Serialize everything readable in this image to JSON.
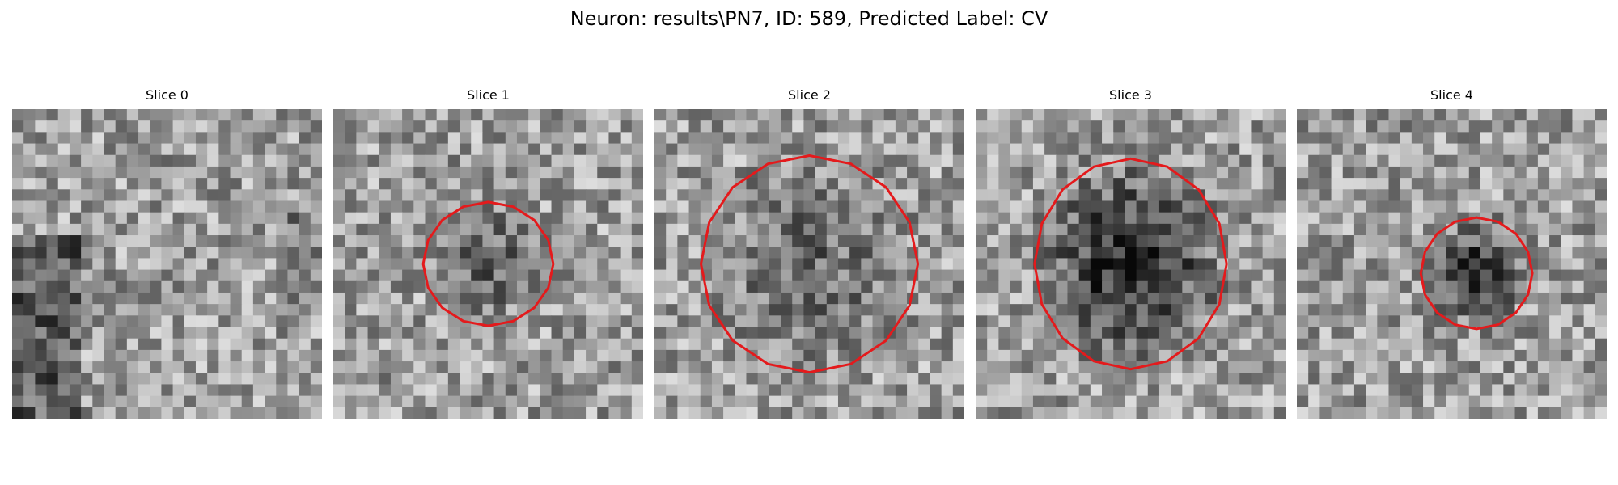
{
  "figure": {
    "suptitle": "Neuron: results\\PN7, ID: 589, Predicted Label: CV"
  },
  "image_grid": {
    "rows": 27,
    "cols": 27,
    "colormap": "gray"
  },
  "contour_color": "#e41a1c",
  "slices": [
    {
      "title": "Slice 0",
      "has_contour": false,
      "contour_center_frac": [
        0.5,
        0.5
      ],
      "contour_radius_frac": [
        0.0,
        0.0
      ],
      "blob_strength": 0.0,
      "seed": 11
    },
    {
      "title": "Slice 1",
      "has_contour": true,
      "contour_center_frac": [
        0.5,
        0.5
      ],
      "contour_radius_frac": [
        0.21,
        0.2
      ],
      "blob_strength": 0.22,
      "seed": 23
    },
    {
      "title": "Slice 2",
      "has_contour": true,
      "contour_center_frac": [
        0.5,
        0.5
      ],
      "contour_radius_frac": [
        0.35,
        0.35
      ],
      "blob_strength": 0.2,
      "seed": 37
    },
    {
      "title": "Slice 3",
      "has_contour": true,
      "contour_center_frac": [
        0.5,
        0.5
      ],
      "contour_radius_frac": [
        0.31,
        0.34
      ],
      "blob_strength": 0.45,
      "seed": 51
    },
    {
      "title": "Slice 4",
      "has_contour": true,
      "contour_center_frac": [
        0.58,
        0.53
      ],
      "contour_radius_frac": [
        0.18,
        0.18
      ],
      "blob_strength": 0.4,
      "seed": 67
    }
  ]
}
